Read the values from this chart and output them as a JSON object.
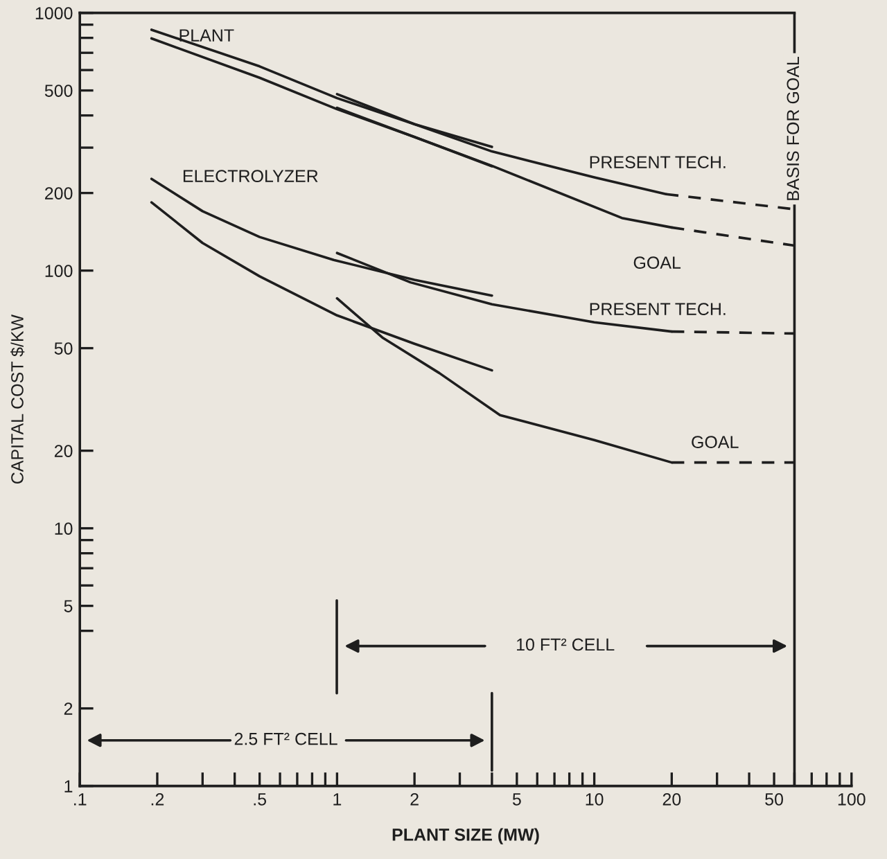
{
  "chart_data": {
    "type": "line",
    "xlabel": "PLANT SIZE (MW)",
    "ylabel": "CAPITAL COST $/KW",
    "log": "xy",
    "line_style": "solid",
    "xlim": [
      0.1,
      100
    ],
    "ylim": [
      1,
      1000
    ],
    "xticks": [
      {
        "value": 0.1,
        "label": ".1"
      },
      {
        "value": 0.2,
        "label": ".2"
      },
      {
        "value": 0.3,
        "label": null
      },
      {
        "value": 0.4,
        "label": null
      },
      {
        "value": 0.5,
        "label": ".5"
      },
      {
        "value": 0.6,
        "label": null
      },
      {
        "value": 0.7,
        "label": null
      },
      {
        "value": 0.8,
        "label": null
      },
      {
        "value": 0.9,
        "label": null
      },
      1,
      2,
      {
        "value": 3,
        "label": null
      },
      {
        "value": 4,
        "label": null
      },
      5,
      {
        "value": 6,
        "label": null
      },
      {
        "value": 7,
        "label": null
      },
      {
        "value": 8,
        "label": null
      },
      {
        "value": 9,
        "label": null
      },
      10,
      20,
      {
        "value": 30,
        "label": null
      },
      {
        "value": 40,
        "label": null
      },
      50,
      {
        "value": 60,
        "label": null
      },
      {
        "value": 70,
        "label": null
      },
      {
        "value": 80,
        "label": null
      },
      {
        "value": 90,
        "label": null
      },
      100
    ],
    "yticks": [
      1,
      2,
      {
        "value": 4,
        "label": null
      },
      5,
      {
        "value": 6,
        "label": null
      },
      {
        "value": 7,
        "label": null
      },
      {
        "value": 8,
        "label": null
      },
      {
        "value": 9,
        "label": null
      },
      10,
      20,
      50,
      100,
      200,
      {
        "value": 300,
        "label": null
      },
      {
        "value": 400,
        "label": null
      },
      500,
      {
        "value": 600,
        "label": null
      },
      {
        "value": 700,
        "label": null
      },
      {
        "value": 800,
        "label": null
      },
      {
        "value": 900,
        "label": null
      },
      1000
    ],
    "series": [
      {
        "color": "#1e1e1e",
        "x": [
          0.19,
          0.5,
          1.0,
          2.0,
          4.0
        ],
        "values": [
          860,
          620,
          467,
          370,
          302
        ]
      },
      {
        "color": "#1e1e1e",
        "x": [
          0.19,
          0.5,
          1.0,
          2.0,
          4.0
        ],
        "values": [
          796,
          560,
          423,
          330,
          254
        ]
      },
      {
        "color": "#1e1e1e",
        "x": [
          1.0,
          2.0,
          4.0,
          10,
          19
        ],
        "values": [
          484,
          370,
          290,
          230,
          198
        ]
      },
      {
        "color": "#1e1e1e",
        "x": [
          19,
          60
        ],
        "values": [
          198,
          173
        ],
        "line_style": "dashed"
      },
      {
        "color": "#1e1e1e",
        "x": [
          1.0,
          2.0,
          4.0,
          12.8,
          20
        ],
        "values": [
          428,
          330,
          255,
          160,
          147
        ]
      },
      {
        "color": "#1e1e1e",
        "x": [
          20,
          60
        ],
        "values": [
          147,
          125
        ],
        "line_style": "dashed"
      },
      {
        "color": "#1e1e1e",
        "x": [
          0.19,
          0.3,
          0.5,
          0.97,
          2.0,
          4.0
        ],
        "values": [
          227,
          170,
          135,
          110,
          92,
          80
        ]
      },
      {
        "color": "#1e1e1e",
        "x": [
          0.19,
          0.3,
          0.5,
          1.0,
          2.0,
          4.0
        ],
        "values": [
          184,
          128,
          95,
          67,
          52,
          41
        ]
      },
      {
        "color": "#1e1e1e",
        "x": [
          1.0,
          1.93,
          4.0,
          10,
          20
        ],
        "values": [
          117,
          90,
          74,
          63,
          58
        ]
      },
      {
        "color": "#1e1e1e",
        "x": [
          20,
          60
        ],
        "values": [
          58,
          57
        ],
        "line_style": "dashed"
      },
      {
        "color": "#1e1e1e",
        "x": [
          1.0,
          1.5,
          2.5,
          4.3,
          10,
          20
        ],
        "values": [
          78,
          55,
          40,
          27.5,
          22,
          18
        ]
      },
      {
        "color": "#1e1e1e",
        "x": [
          20,
          60
        ],
        "values": [
          18,
          18
        ],
        "line_style": "dashed"
      }
    ],
    "ref_lines": [
      {
        "axis": "x",
        "value": 60,
        "label": "BASIS FOR GOAL"
      }
    ],
    "annotations": [
      "PLANT",
      "ELECTROLYZER",
      "PRESENT TECH.",
      "GOAL",
      "PRESENT TECH.",
      "GOAL",
      "10 FT² CELL",
      "2.5 FT² CELL"
    ],
    "grid": false,
    "legend": false
  }
}
